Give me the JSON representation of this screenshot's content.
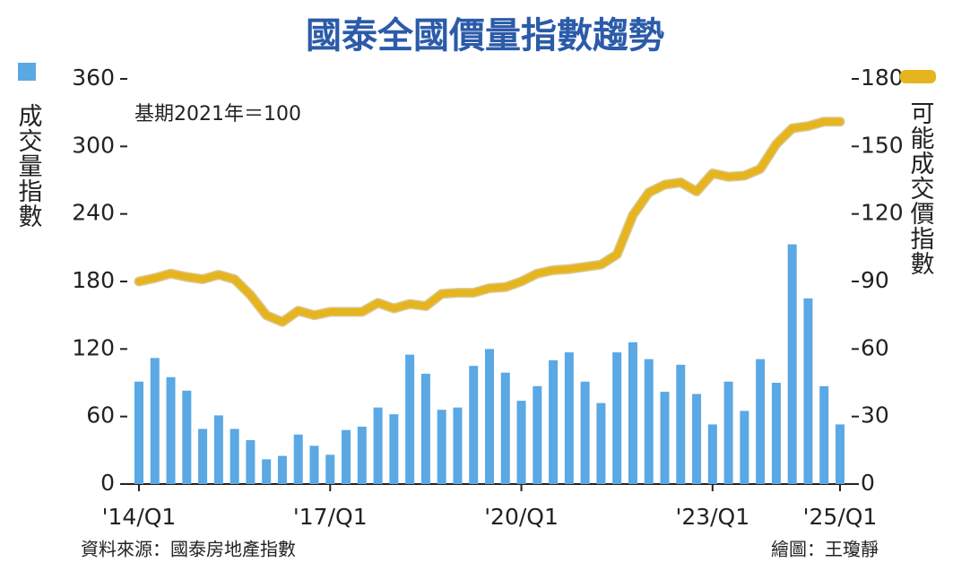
{
  "chart_data": {
    "type": "bar",
    "title": "國泰全國價量指數趨勢",
    "subtitle": "基期2021年＝100",
    "source": "資料來源：國泰房地產指數",
    "credit": "繪圖：王瓊靜",
    "categories": [
      "'14/Q1",
      null,
      null,
      null,
      null,
      null,
      null,
      null,
      null,
      null,
      null,
      null,
      "'17/Q1",
      null,
      null,
      null,
      null,
      null,
      null,
      null,
      null,
      null,
      null,
      null,
      "'20/Q1",
      null,
      null,
      null,
      null,
      null,
      null,
      null,
      null,
      null,
      null,
      null,
      "'23/Q1",
      null,
      null,
      null,
      null,
      null,
      null,
      null,
      "'25/Q1"
    ],
    "series": [
      {
        "name": "成交量指數",
        "type": "bar",
        "color": "#5aa8e4",
        "values": [
          91,
          112,
          95,
          83,
          49,
          61,
          49,
          39,
          22,
          25,
          44,
          34,
          26,
          48,
          51,
          68,
          62,
          115,
          98,
          66,
          68,
          105,
          120,
          99,
          74,
          87,
          110,
          117,
          91,
          72,
          117,
          126,
          111,
          82,
          106,
          80,
          53,
          91,
          65,
          111,
          90,
          213,
          165,
          87,
          53
        ]
      },
      {
        "name": "可能成交價指數",
        "type": "line",
        "axis": "y2",
        "color": "#e6b41e",
        "values": [
          90,
          91.5,
          93.5,
          92,
          91,
          93,
          91,
          84,
          75,
          72,
          77,
          75,
          76.5,
          76.5,
          76.5,
          80.5,
          78,
          80,
          79,
          84.5,
          85,
          85,
          87,
          87.5,
          90,
          93.5,
          95,
          95.5,
          96.5,
          97.5,
          102,
          119.5,
          129.5,
          133,
          134,
          130,
          138,
          136.5,
          137,
          140,
          151,
          158,
          159,
          161,
          161
        ]
      }
    ],
    "ylim": [
      0,
      360
    ],
    "yticks": [
      0,
      60,
      120,
      180,
      240,
      300,
      360
    ],
    "y2lim": [
      0,
      180
    ],
    "y2ticks": [
      0,
      30,
      60,
      90,
      120,
      150,
      180
    ],
    "grid": false
  }
}
